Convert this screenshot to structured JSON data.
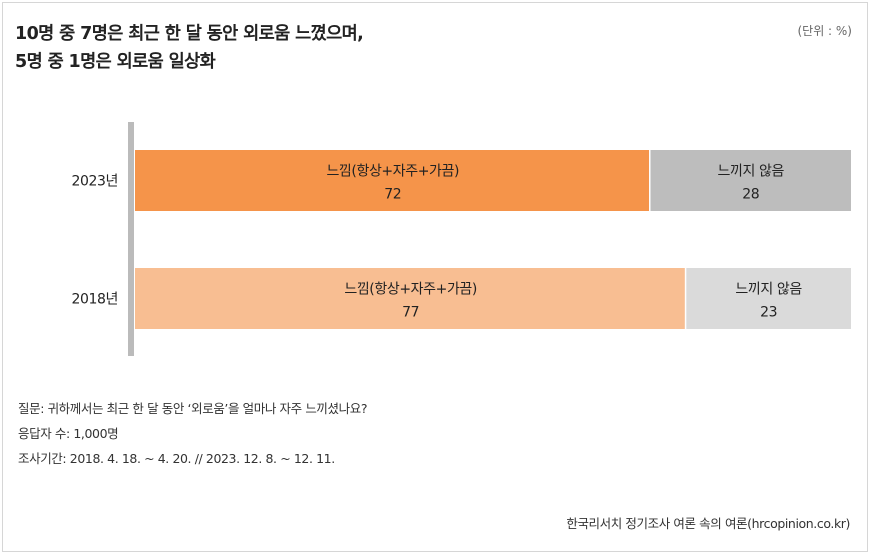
{
  "title": {
    "line1": "10명 중 7명은 최근 한 달 동안 외로움 느꼈으며,",
    "line2": "5명 중 1명은 외로움 일상화"
  },
  "unit_label": "(단위 : %)",
  "notes": {
    "question": "질문: 귀하께서는 최근 한 달 동안 ‘외로움’을 얼마나 자주 느끼셨나요?",
    "respondents": "응답자 수: 1,000명",
    "period": "조사기간: 2018. 4. 18. ~ 4. 20. // 2023. 12. 8. ~ 12. 11."
  },
  "source": "한국리서치 정기조사 여론 속의 여론(hrcopinion.co.kr)",
  "colors": {
    "felt_2023": "#f5944a",
    "notfelt_2023": "#bdbdbd",
    "felt_2018": "#f8be92",
    "notfelt_2018": "#dadada",
    "axis": "#bbbbbb"
  },
  "chart_data": {
    "type": "bar",
    "orientation": "horizontal",
    "stacked": true,
    "categories": [
      "2023년",
      "2018년"
    ],
    "series": [
      {
        "name": "느낌(항상+자주+가끔)",
        "values": [
          72,
          77
        ]
      },
      {
        "name": "느끼지 않음",
        "values": [
          28,
          23
        ]
      }
    ],
    "xlim": [
      0,
      100
    ],
    "unit": "%"
  }
}
